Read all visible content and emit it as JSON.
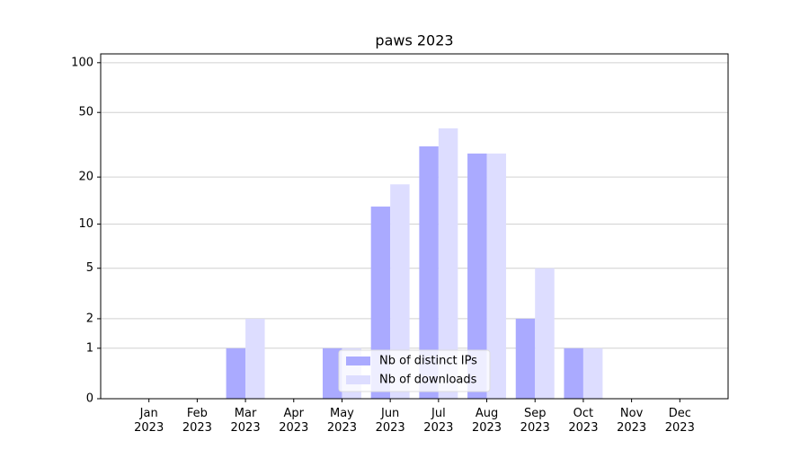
{
  "chart_data": {
    "type": "bar",
    "title": "paws 2023",
    "categories": [
      "Jan\n2023",
      "Feb\n2023",
      "Mar\n2023",
      "Apr\n2023",
      "May\n2023",
      "Jun\n2023",
      "Jul\n2023",
      "Aug\n2023",
      "Sep\n2023",
      "Oct\n2023",
      "Nov\n2023",
      "Dec\n2023"
    ],
    "series": [
      {
        "name": "Nb of distinct IPs",
        "color": "#aaaaff",
        "values": [
          0,
          0,
          1,
          0,
          1,
          13,
          31,
          28,
          2,
          1,
          0,
          0
        ]
      },
      {
        "name": "Nb of downloads",
        "color": "#ddddff",
        "values": [
          0,
          0,
          2,
          0,
          1,
          18,
          40,
          28,
          5,
          1,
          0,
          0
        ]
      }
    ],
    "y_scale": "log1p",
    "ylim": [
      0,
      113
    ],
    "yticks": [
      0,
      1,
      2,
      5,
      10,
      20,
      50,
      100
    ],
    "grid": true,
    "legend": "lower center"
  }
}
